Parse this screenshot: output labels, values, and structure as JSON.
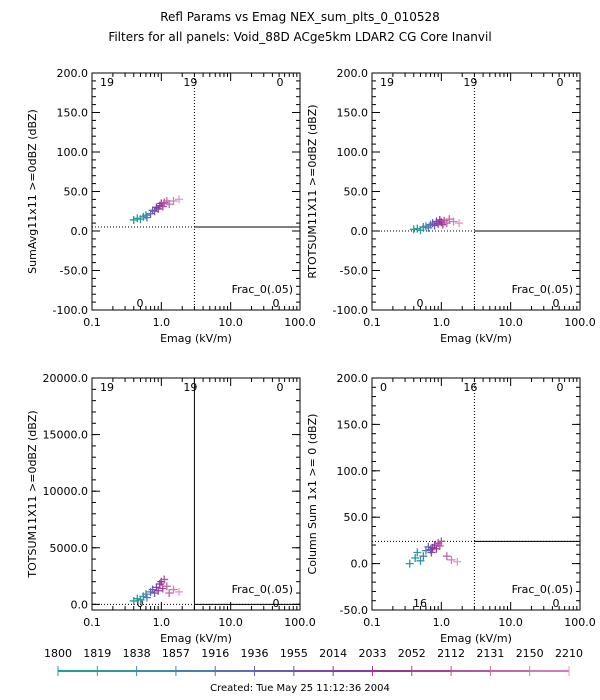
{
  "header": {
    "title": "Refl Params vs Emag    NEX_sum_plts_0_010528",
    "subtitle": "Filters for all panels:  Void_88D ACge5km LDAR2 CG Core Inanvil"
  },
  "chart_data": [
    {
      "type": "scatter",
      "xlabel": "Emag (kV/m)",
      "ylabel": "SumAvg11x11 >=0dBZ (dBZ)",
      "xscale": "log",
      "xlim": [
        0.1,
        100.0
      ],
      "ylim": [
        -100.0,
        200.0
      ],
      "xticks": [
        "0.1",
        "1.0",
        "10.0",
        "100.0"
      ],
      "yticks": [
        "-100.0",
        "-50.0",
        "0.0",
        "50.0",
        "100.0",
        "150.0",
        "200.0"
      ],
      "ref_x": 3.0,
      "ref_y": 5.0,
      "corner_counts": [
        "19",
        "19",
        "0",
        "0",
        "0"
      ],
      "annotation": "Frac_0(.05)",
      "points": [
        [
          0.4,
          14
        ],
        [
          0.45,
          16
        ],
        [
          0.5,
          15
        ],
        [
          0.55,
          18
        ],
        [
          0.6,
          20
        ],
        [
          0.62,
          17
        ],
        [
          0.7,
          22
        ],
        [
          0.75,
          26
        ],
        [
          0.8,
          25
        ],
        [
          0.85,
          30
        ],
        [
          0.9,
          28
        ],
        [
          0.95,
          32
        ],
        [
          1.0,
          35
        ],
        [
          1.05,
          31
        ],
        [
          1.1,
          36
        ],
        [
          1.2,
          38
        ],
        [
          1.3,
          34
        ],
        [
          1.5,
          38
        ],
        [
          1.8,
          40
        ]
      ]
    },
    {
      "type": "scatter",
      "xlabel": "Emag (kV/m)",
      "ylabel": "RTOTSUM11X11 >=0dBZ (dBZ)",
      "xscale": "log",
      "xlim": [
        0.1,
        100.0
      ],
      "ylim": [
        -100.0,
        200.0
      ],
      "xticks": [
        "0.1",
        "1.0",
        "10.0",
        "100.0"
      ],
      "yticks": [
        "-100.0",
        "-50.0",
        "0.0",
        "50.0",
        "100.0",
        "150.0",
        "200.0"
      ],
      "ref_x": 3.0,
      "ref_y": 0.0,
      "corner_counts": [
        "19",
        "19",
        "0",
        "0",
        "0"
      ],
      "annotation": "Frac_0(.05)",
      "points": [
        [
          0.4,
          2
        ],
        [
          0.45,
          3
        ],
        [
          0.5,
          1
        ],
        [
          0.55,
          5
        ],
        [
          0.6,
          6
        ],
        [
          0.65,
          4
        ],
        [
          0.7,
          8
        ],
        [
          0.75,
          10
        ],
        [
          0.8,
          7
        ],
        [
          0.85,
          12
        ],
        [
          0.9,
          9
        ],
        [
          0.95,
          14
        ],
        [
          1.0,
          11
        ],
        [
          1.05,
          8
        ],
        [
          1.1,
          13
        ],
        [
          1.2,
          10
        ],
        [
          1.3,
          15
        ],
        [
          1.5,
          12
        ],
        [
          1.8,
          10
        ]
      ]
    },
    {
      "type": "scatter",
      "xlabel": "Emag (kV/m)",
      "ylabel": "TOTSUM11X11 >=0dBZ (dBZ)",
      "xscale": "log",
      "xlim": [
        0.1,
        100.0
      ],
      "ylim": [
        -500.0,
        20000.0
      ],
      "xticks": [
        "0.1",
        "1.0",
        "10.0",
        "100.0"
      ],
      "yticks": [
        "0.0",
        "5000.0",
        "10000.0",
        "15000.0",
        "20000.0"
      ],
      "ref_x": 3.0,
      "ref_y": 0.0,
      "corner_counts": [
        "19",
        "19",
        "0",
        "0",
        "0"
      ],
      "annotation": "Frac_0(.05)",
      "points": [
        [
          0.4,
          300
        ],
        [
          0.45,
          500
        ],
        [
          0.5,
          400
        ],
        [
          0.55,
          700
        ],
        [
          0.6,
          900
        ],
        [
          0.62,
          600
        ],
        [
          0.7,
          1100
        ],
        [
          0.75,
          1300
        ],
        [
          0.8,
          1000
        ],
        [
          0.85,
          1500
        ],
        [
          0.9,
          1200
        ],
        [
          0.95,
          1800
        ],
        [
          1.0,
          2000
        ],
        [
          1.05,
          1400
        ],
        [
          1.1,
          2200
        ],
        [
          1.2,
          1600
        ],
        [
          1.3,
          1000
        ],
        [
          1.5,
          1300
        ],
        [
          1.8,
          1100
        ]
      ]
    },
    {
      "type": "scatter",
      "xlabel": "Emag (kV/m)",
      "ylabel": "Column Sum 1x1 >= 0 (dBZ)",
      "xscale": "log",
      "xlim": [
        0.1,
        100.0
      ],
      "ylim": [
        -50.0,
        200.0
      ],
      "xticks": [
        "0.1",
        "1.0",
        "10.0",
        "100.0"
      ],
      "yticks": [
        "-50.0",
        "0.0",
        "50.0",
        "100.0",
        "150.0",
        "200.0"
      ],
      "ref_x": 3.0,
      "ref_y": 24.0,
      "corner_counts": [
        "0",
        "16",
        "0",
        "16",
        "0"
      ],
      "annotation": "Frac_0(.05)",
      "points": [
        [
          0.35,
          0
        ],
        [
          0.42,
          6
        ],
        [
          0.45,
          12
        ],
        [
          0.5,
          3
        ],
        [
          0.55,
          8
        ],
        [
          0.6,
          14
        ],
        [
          0.65,
          18
        ],
        [
          0.7,
          15
        ],
        [
          0.72,
          12
        ],
        [
          0.75,
          17
        ],
        [
          0.8,
          20
        ],
        [
          0.85,
          16
        ],
        [
          0.9,
          22
        ],
        [
          0.95,
          19
        ],
        [
          1.0,
          24
        ],
        [
          1.2,
          8
        ],
        [
          1.4,
          4
        ],
        [
          1.7,
          2
        ]
      ]
    }
  ],
  "colorbar": {
    "labels": [
      "1800",
      "1819",
      "1838",
      "1857",
      "1916",
      "1936",
      "1955",
      "2014",
      "2033",
      "2052",
      "2112",
      "2131",
      "2150",
      "2210"
    ],
    "colors": [
      "#20a090",
      "#2e9aa0",
      "#3c8ea8",
      "#4a80b0",
      "#5a70b2",
      "#6a5cb0",
      "#7a4aa8",
      "#8a3aa0",
      "#98349a",
      "#a6409c",
      "#b452a4",
      "#c266ae",
      "#d07cbc",
      "#e296cc"
    ]
  },
  "footer": {
    "created": "Created: Tue May 25 11:12:36 2004"
  }
}
